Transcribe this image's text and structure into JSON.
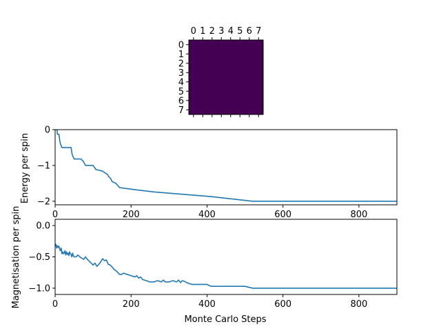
{
  "chart_data": [
    {
      "type": "heatmap",
      "rows": 8,
      "cols": 8,
      "x_tick_labels": [
        "0",
        "1",
        "2",
        "3",
        "4",
        "5",
        "6",
        "7"
      ],
      "y_tick_labels": [
        "0",
        "1",
        "2",
        "3",
        "4",
        "5",
        "6",
        "7"
      ],
      "values": [
        [
          0,
          0,
          0,
          0,
          0,
          0,
          0,
          0
        ],
        [
          0,
          0,
          0,
          0,
          0,
          0,
          0,
          0
        ],
        [
          0,
          0,
          0,
          0,
          0,
          0,
          0,
          0
        ],
        [
          0,
          0,
          0,
          0,
          0,
          0,
          0,
          0
        ],
        [
          0,
          0,
          0,
          0,
          0,
          0,
          0,
          0
        ],
        [
          0,
          0,
          0,
          0,
          0,
          0,
          0,
          0
        ],
        [
          0,
          0,
          0,
          0,
          0,
          0,
          0,
          0
        ],
        [
          0,
          0,
          0,
          0,
          0,
          0,
          0,
          0
        ]
      ],
      "color": "#440154",
      "x_ticks_position": "top"
    },
    {
      "type": "line",
      "title": "",
      "xlabel": "",
      "ylabel": "Energy per spin",
      "xlim": [
        0,
        900
      ],
      "ylim": [
        -2.1,
        0
      ],
      "xticks": [
        0,
        200,
        400,
        600,
        800
      ],
      "yticks": [
        0,
        -1,
        -2
      ],
      "x_tick_labels": [
        "0",
        "200",
        "400",
        "600",
        "800"
      ],
      "y_tick_labels": [
        "0",
        "−1",
        "−2"
      ],
      "grid": false,
      "color": "#1f77b4",
      "series": [
        {
          "x": [
            0,
            5,
            6,
            10,
            11,
            12,
            14,
            16,
            18,
            22,
            42,
            45,
            50,
            68,
            75,
            80,
            100,
            108,
            110,
            125,
            130,
            138,
            140,
            146,
            150,
            160,
            165,
            170,
            212,
            260,
            410,
            520,
            900
          ],
          "y": [
            0,
            0,
            -0.13,
            -0.13,
            -0.2,
            -0.3,
            -0.4,
            -0.45,
            -0.5,
            -0.5,
            -0.5,
            -0.7,
            -0.82,
            -0.82,
            -0.9,
            -1.0,
            -1.0,
            -1.12,
            -1.12,
            -1.16,
            -1.2,
            -1.25,
            -1.3,
            -1.36,
            -1.45,
            -1.5,
            -1.56,
            -1.62,
            -1.68,
            -1.74,
            -1.87,
            -2.0,
            -2.0
          ]
        }
      ]
    },
    {
      "type": "line",
      "title": "",
      "xlabel": "Monte Carlo Steps",
      "ylabel": "Magnetisation per spin",
      "xlim": [
        0,
        900
      ],
      "ylim": [
        -1.1,
        0.1
      ],
      "xticks": [
        0,
        200,
        400,
        600,
        800
      ],
      "yticks": [
        0,
        -0.5,
        -1
      ],
      "x_tick_labels": [
        "0",
        "200",
        "400",
        "600",
        "800"
      ],
      "y_tick_labels": [
        "0.0",
        "−0.5",
        "−1.0"
      ],
      "grid": false,
      "color": "#1f77b4",
      "series": [
        {
          "x": [
            0,
            2,
            4,
            6,
            8,
            10,
            12,
            14,
            16,
            18,
            20,
            22,
            24,
            26,
            28,
            30,
            32,
            34,
            36,
            38,
            40,
            42,
            44,
            46,
            48,
            50,
            55,
            60,
            65,
            70,
            75,
            80,
            85,
            90,
            95,
            100,
            105,
            110,
            115,
            120,
            125,
            130,
            135,
            140,
            145,
            150,
            155,
            160,
            165,
            170,
            175,
            180,
            190,
            200,
            210,
            215,
            220,
            225,
            230,
            240,
            250,
            260,
            270,
            280,
            285,
            290,
            300,
            310,
            320,
            325,
            330,
            335,
            340,
            350,
            360,
            380,
            400,
            410,
            450,
            500,
            520,
            600,
            700,
            800,
            900
          ],
          "y": [
            -0.33,
            -0.3,
            -0.36,
            -0.32,
            -0.35,
            -0.33,
            -0.38,
            -0.4,
            -0.36,
            -0.45,
            -0.42,
            -0.45,
            -0.44,
            -0.4,
            -0.47,
            -0.42,
            -0.46,
            -0.44,
            -0.48,
            -0.42,
            -0.45,
            -0.46,
            -0.5,
            -0.44,
            -0.48,
            -0.5,
            -0.5,
            -0.47,
            -0.5,
            -0.52,
            -0.54,
            -0.5,
            -0.54,
            -0.57,
            -0.6,
            -0.63,
            -0.6,
            -0.65,
            -0.62,
            -0.58,
            -0.53,
            -0.56,
            -0.55,
            -0.62,
            -0.63,
            -0.66,
            -0.7,
            -0.72,
            -0.75,
            -0.78,
            -0.78,
            -0.76,
            -0.78,
            -0.8,
            -0.82,
            -0.8,
            -0.84,
            -0.82,
            -0.86,
            -0.88,
            -0.9,
            -0.9,
            -0.88,
            -0.9,
            -0.87,
            -0.9,
            -0.9,
            -0.88,
            -0.9,
            -0.87,
            -0.91,
            -0.88,
            -0.89,
            -0.92,
            -0.94,
            -0.94,
            -0.94,
            -0.97,
            -0.97,
            -0.97,
            -1.0,
            -1.0,
            -1.0,
            -1.0,
            -1.0
          ]
        }
      ]
    }
  ]
}
